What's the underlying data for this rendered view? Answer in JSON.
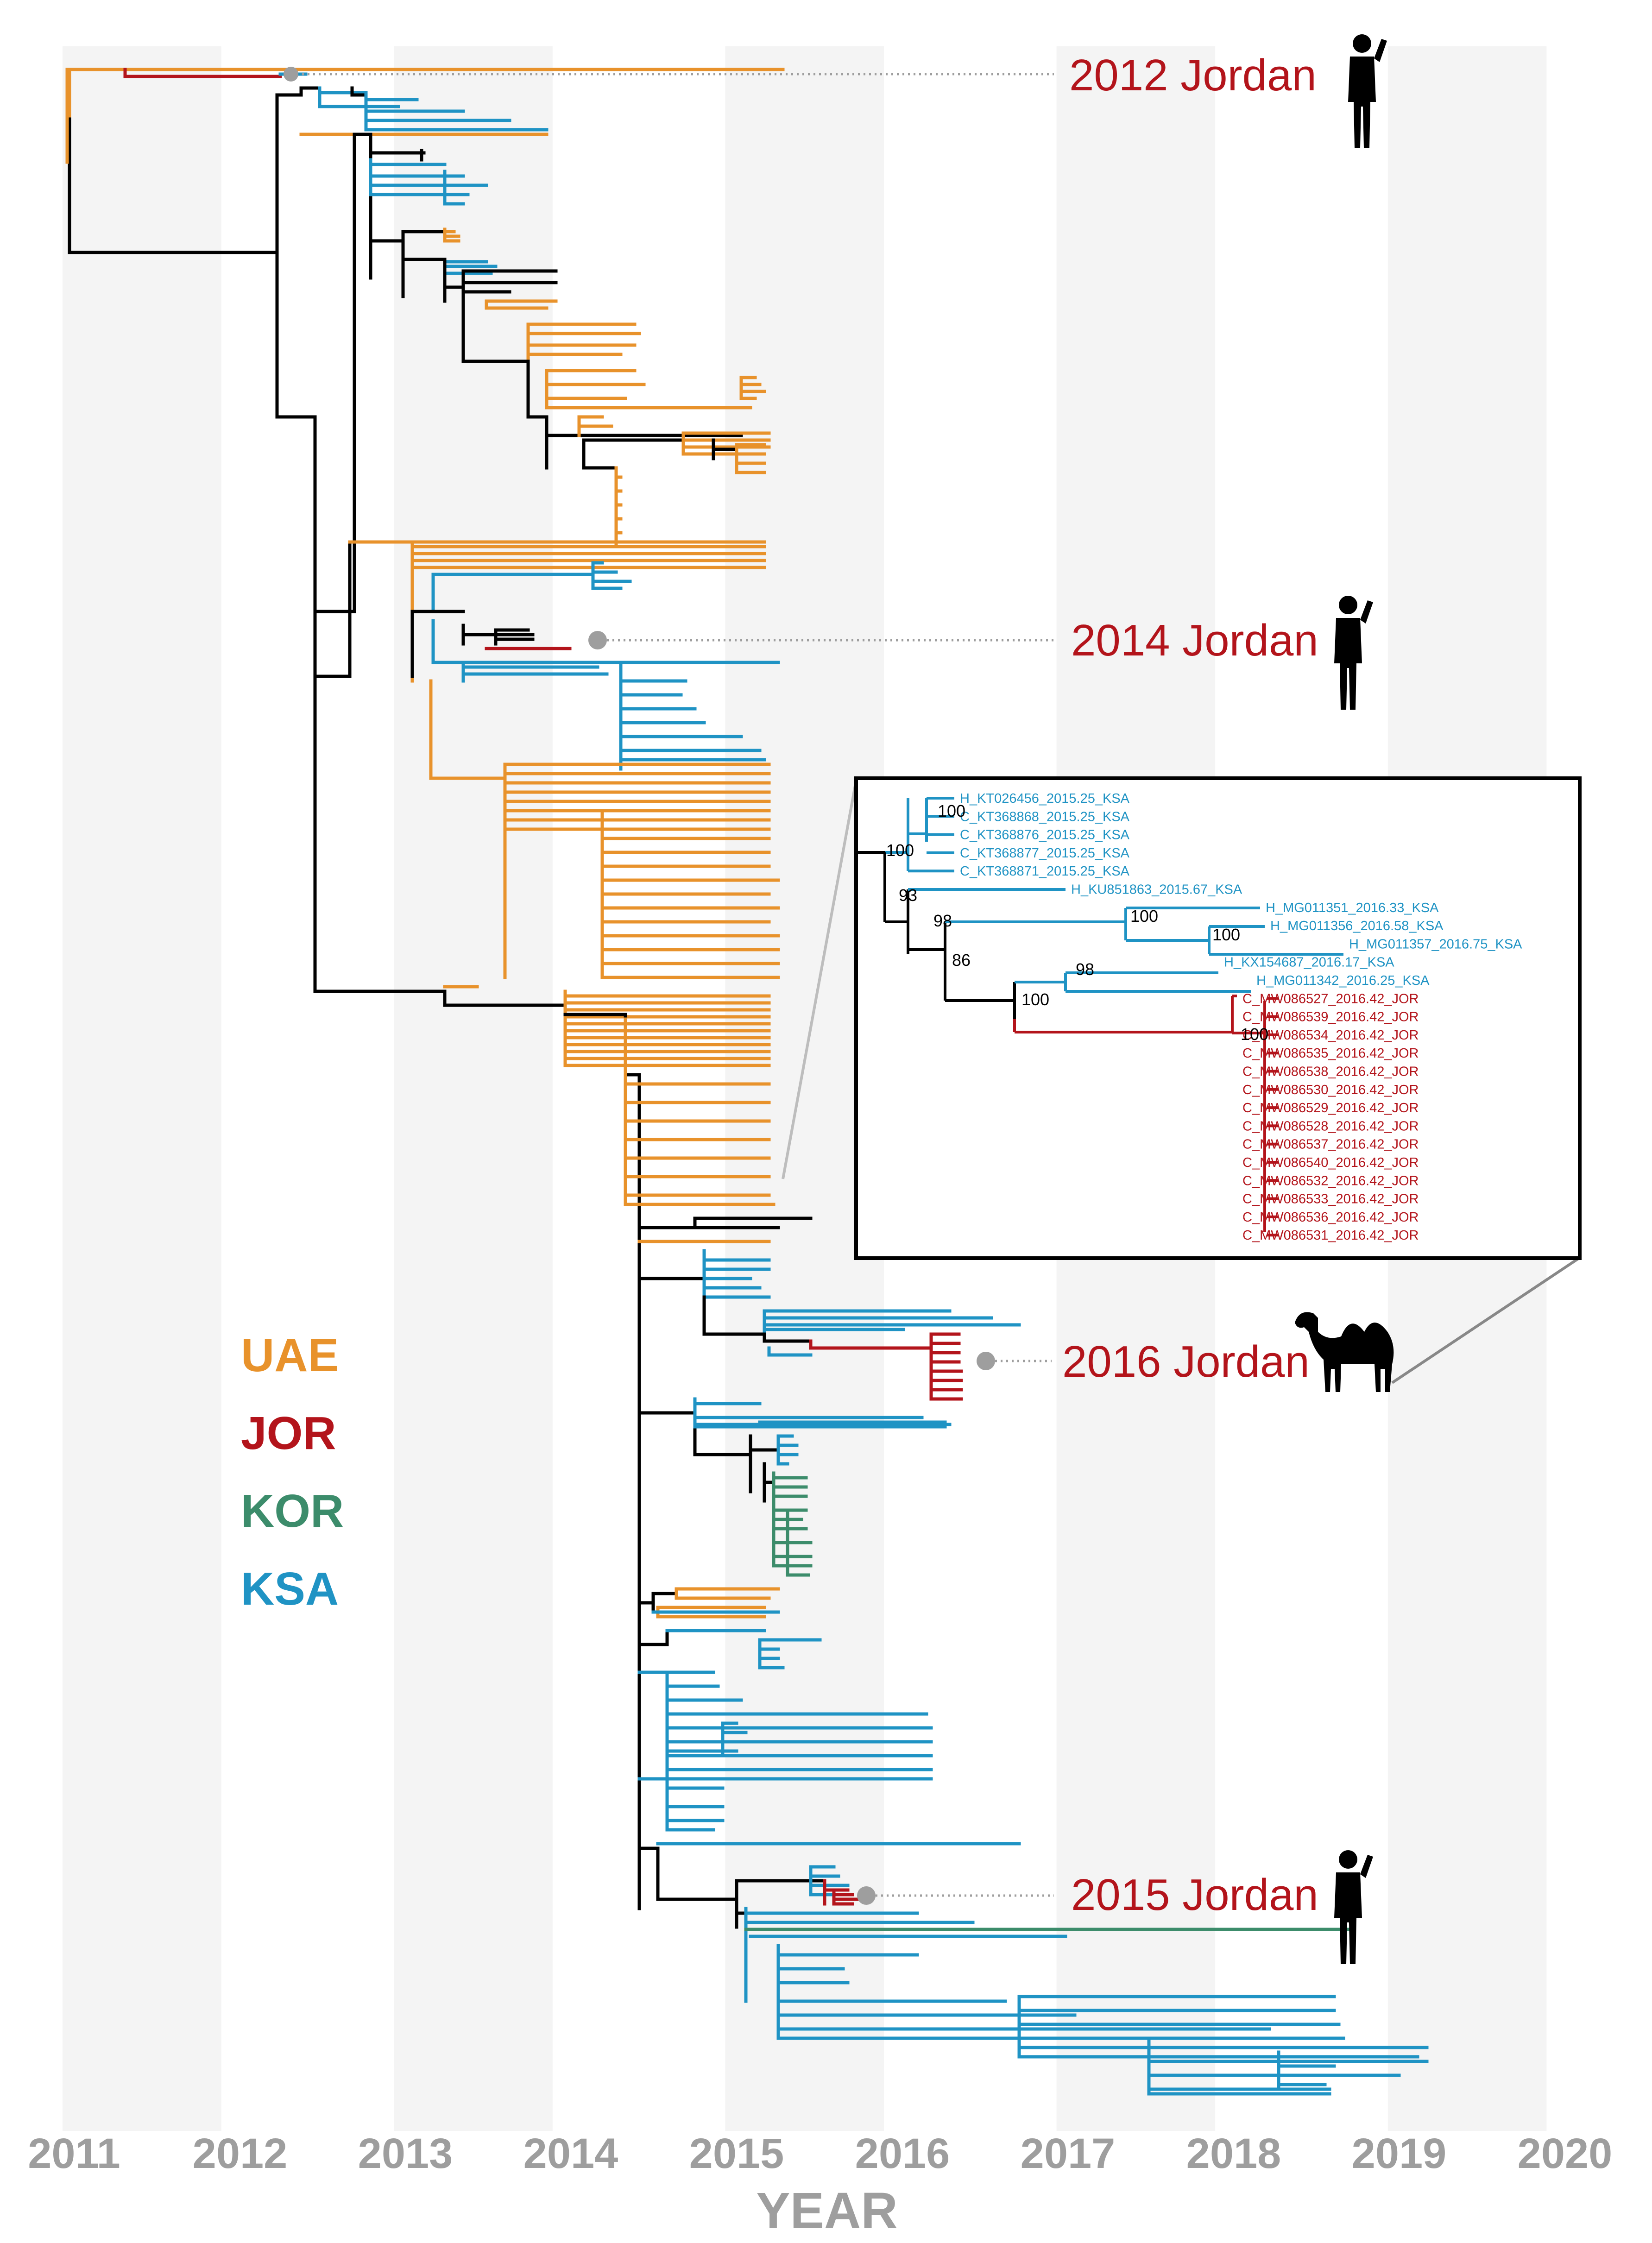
{
  "axis": {
    "title": "YEAR",
    "years": [
      "2011",
      "2012",
      "2013",
      "2014",
      "2015",
      "2016",
      "2017",
      "2018",
      "2019",
      "2020"
    ]
  },
  "colors": {
    "UAE": "#e8922b",
    "JOR": "#b3141b",
    "KOR": "#3c8c6b",
    "KSA": "#1f93c4",
    "backbone": "#000000",
    "band": "#f4f4f4",
    "dotted": "#9e9e9e"
  },
  "legend": [
    {
      "label": "UAE",
      "key": "UAE"
    },
    {
      "label": "JOR",
      "key": "JOR"
    },
    {
      "label": "KOR",
      "key": "KOR"
    },
    {
      "label": "KSA",
      "key": "KSA"
    }
  ],
  "callouts": [
    {
      "label": "2012 Jordan",
      "host": "human-icon"
    },
    {
      "label": "2014 Jordan",
      "host": "human-icon"
    },
    {
      "label": "2016 Jordan",
      "host": "camel-icon"
    },
    {
      "label": "2015 Jordan",
      "host": "human-icon"
    }
  ],
  "inset": {
    "leaves": [
      {
        "name": "H_KT026456_2015.25_KSA",
        "key": "KSA"
      },
      {
        "name": "C_KT368868_2015.25_KSA",
        "key": "KSA"
      },
      {
        "name": "C_KT368876_2015.25_KSA",
        "key": "KSA"
      },
      {
        "name": "C_KT368877_2015.25_KSA",
        "key": "KSA"
      },
      {
        "name": "C_KT368871_2015.25_KSA",
        "key": "KSA"
      },
      {
        "name": "H_KU851863_2015.67_KSA",
        "key": "KSA"
      },
      {
        "name": "H_MG011351_2016.33_KSA",
        "key": "KSA"
      },
      {
        "name": "H_MG011356_2016.58_KSA",
        "key": "KSA"
      },
      {
        "name": "H_MG011357_2016.75_KSA",
        "key": "KSA"
      },
      {
        "name": "H_KX154687_2016.17_KSA",
        "key": "KSA"
      },
      {
        "name": "H_MG011342_2016.25_KSA",
        "key": "KSA"
      },
      {
        "name": "C_MW086527_2016.42_JOR",
        "key": "JOR"
      },
      {
        "name": "C_MW086539_2016.42_JOR",
        "key": "JOR"
      },
      {
        "name": "C_MW086534_2016.42_JOR",
        "key": "JOR"
      },
      {
        "name": "C_MW086535_2016.42_JOR",
        "key": "JOR"
      },
      {
        "name": "C_MW086538_2016.42_JOR",
        "key": "JOR"
      },
      {
        "name": "C_MW086530_2016.42_JOR",
        "key": "JOR"
      },
      {
        "name": "C_MW086529_2016.42_JOR",
        "key": "JOR"
      },
      {
        "name": "C_MW086528_2016.42_JOR",
        "key": "JOR"
      },
      {
        "name": "C_MW086537_2016.42_JOR",
        "key": "JOR"
      },
      {
        "name": "C_MW086540_2016.42_JOR",
        "key": "JOR"
      },
      {
        "name": "C_MW086532_2016.42_JOR",
        "key": "JOR"
      },
      {
        "name": "C_MW086533_2016.42_JOR",
        "key": "JOR"
      },
      {
        "name": "C_MW086536_2016.42_JOR",
        "key": "JOR"
      },
      {
        "name": "C_MW086531_2016.42_JOR",
        "key": "JOR"
      }
    ],
    "support_values": [
      "100",
      "100",
      "93",
      "98",
      "86",
      "100",
      "100",
      "98",
      "100",
      "100"
    ]
  }
}
